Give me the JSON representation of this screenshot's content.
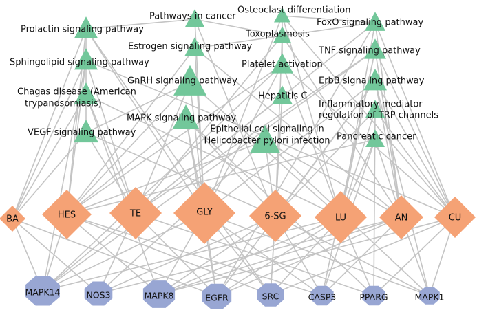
{
  "pathways": [
    {
      "id": "p_prl",
      "name": "Prolactin signaling pathway"
    },
    {
      "id": "p_sph",
      "name": "Sphingolipid signaling pathway"
    },
    {
      "id": "p_cha",
      "name": "Chagas disease (American trypanosomiasis)"
    },
    {
      "id": "p_vegf",
      "name": "VEGF signaling pathway"
    },
    {
      "id": "p_pic",
      "name": "Pathways in cancer"
    },
    {
      "id": "p_est",
      "name": "Estrogen signaling pathway"
    },
    {
      "id": "p_gnrh",
      "name": "GnRH signaling pathway"
    },
    {
      "id": "p_mapk",
      "name": "MAPK signaling pathway"
    },
    {
      "id": "p_ost",
      "name": "Osteoclast differentiation"
    },
    {
      "id": "p_tox",
      "name": "Toxoplasmosis"
    },
    {
      "id": "p_plt",
      "name": "Platelet activation"
    },
    {
      "id": "p_hepc",
      "name": "Hepatitis C"
    },
    {
      "id": "p_epi",
      "name": "Epithelial cell signaling in Helicobacter pylori infection"
    },
    {
      "id": "p_foxo",
      "name": "FoxO signaling pathway"
    },
    {
      "id": "p_tnf",
      "name": "TNF signaling pathway"
    },
    {
      "id": "p_erbb",
      "name": "ErbB signaling pathway"
    },
    {
      "id": "p_inf",
      "name": "Inflammatory mediator regulation of TRP channels"
    },
    {
      "id": "p_pan",
      "name": "Pancreatic cancer"
    }
  ],
  "compounds": [
    {
      "id": "c_ba",
      "name": "BA"
    },
    {
      "id": "c_hes",
      "name": "HES"
    },
    {
      "id": "c_te",
      "name": "TE"
    },
    {
      "id": "c_gly",
      "name": "GLY"
    },
    {
      "id": "c_6sg",
      "name": "6-SG"
    },
    {
      "id": "c_lu",
      "name": "LU"
    },
    {
      "id": "c_an",
      "name": "AN"
    },
    {
      "id": "c_cu",
      "name": "CU"
    }
  ],
  "targets": [
    {
      "id": "t_mapk14",
      "name": "MAPK14"
    },
    {
      "id": "t_nos3",
      "name": "NOS3"
    },
    {
      "id": "t_mapk8",
      "name": "MAPK8"
    },
    {
      "id": "t_egfr",
      "name": "EGFR"
    },
    {
      "id": "t_src",
      "name": "SRC"
    },
    {
      "id": "t_casp3",
      "name": "CASP3"
    },
    {
      "id": "t_pparg",
      "name": "PPARG"
    },
    {
      "id": "t_mapk1",
      "name": "MAPK1"
    }
  ],
  "colors": {
    "pathway": "#72c79a",
    "compound": "#f5a275",
    "target": "#98a6d3",
    "edge": "#c4c4c4"
  }
}
